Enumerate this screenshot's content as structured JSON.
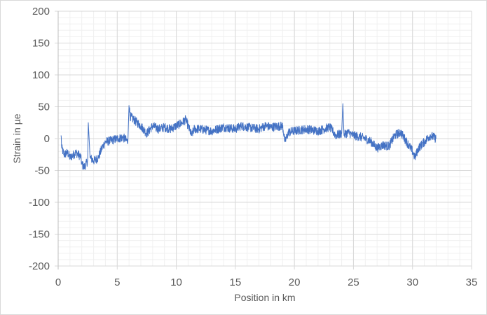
{
  "chart_data": {
    "type": "line",
    "title": "",
    "xlabel": "Position in km",
    "ylabel": "Strain in µe",
    "xlim": [
      0,
      35
    ],
    "ylim": [
      -200,
      200
    ],
    "x_ticks": [
      0,
      5,
      10,
      15,
      20,
      25,
      30,
      35
    ],
    "y_ticks": [
      200,
      150,
      100,
      50,
      0,
      -50,
      -100,
      -150,
      -200
    ],
    "x_tick_labels": [
      "0",
      "5",
      "10",
      "15",
      "20",
      "25",
      "30",
      "35"
    ],
    "y_tick_labels": [
      "200",
      "150",
      "100",
      "50",
      "0",
      "-50",
      "-100",
      "-150",
      "-200"
    ],
    "grid": {
      "major": true,
      "minor": true,
      "minor_x_step": 1,
      "minor_y_step": 10
    },
    "legend": "none",
    "series": [
      {
        "name": "Strain",
        "color": "#4472c4",
        "x": [
          0.25,
          0.3,
          0.5,
          0.8,
          1.0,
          1.5,
          1.9,
          2.0,
          2.2,
          2.5,
          2.55,
          2.7,
          3.0,
          3.4,
          3.7,
          4.0,
          4.5,
          5.0,
          5.5,
          5.9,
          6.0,
          6.1,
          6.5,
          7.0,
          7.5,
          8.0,
          8.5,
          9.0,
          9.5,
          10.0,
          10.5,
          10.8,
          11.0,
          11.3,
          11.5,
          12.0,
          13.0,
          14.0,
          15.0,
          15.5,
          16.0,
          17.0,
          17.5,
          18.0,
          19.0,
          19.2,
          19.5,
          20.0,
          21.0,
          22.0,
          23.0,
          23.5,
          24.0,
          24.1,
          24.2,
          24.5,
          25.0,
          25.5,
          26.0,
          26.5,
          27.0,
          27.5,
          28.0,
          28.5,
          29.0,
          29.5,
          30.0,
          30.2,
          30.5,
          31.0,
          31.5,
          32.0
        ],
        "y": [
          5,
          -15,
          -25,
          -22,
          -30,
          -22,
          -28,
          -40,
          -45,
          -35,
          25,
          -30,
          -35,
          -30,
          -15,
          -5,
          -3,
          0,
          2,
          -5,
          52,
          35,
          28,
          20,
          8,
          20,
          15,
          18,
          15,
          20,
          25,
          30,
          20,
          5,
          15,
          15,
          12,
          18,
          15,
          20,
          18,
          15,
          20,
          18,
          20,
          -5,
          10,
          12,
          15,
          12,
          18,
          5,
          8,
          55,
          5,
          10,
          5,
          3,
          0,
          -5,
          -15,
          -10,
          -12,
          5,
          10,
          -5,
          -20,
          -30,
          -15,
          -5,
          5,
          0
        ]
      }
    ]
  }
}
